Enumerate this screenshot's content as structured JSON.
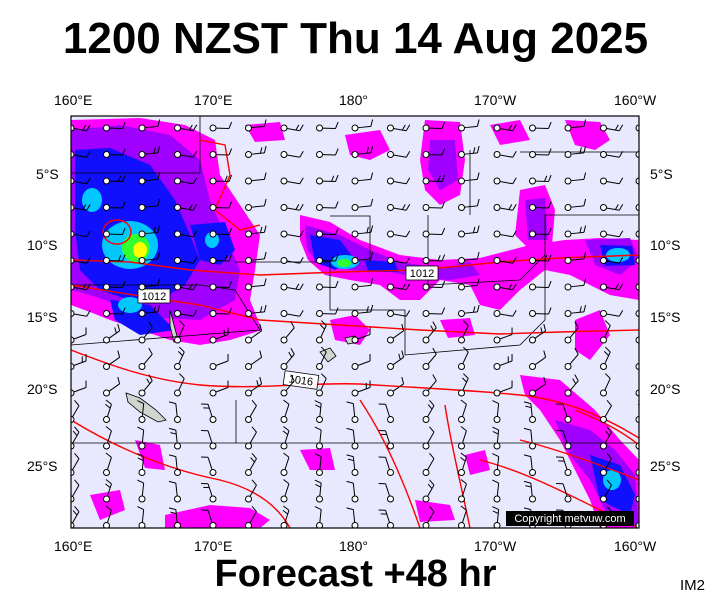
{
  "title": "1200 NZST Thu 14 Aug 2025",
  "subtitle": "Forecast +48 hr",
  "product_code": "IM2",
  "copyright": "Copyright metvuw.com",
  "axes": {
    "lon_labels": [
      "160°E",
      "170°E",
      "180°",
      "170°W",
      "160°W"
    ],
    "lat_labels": [
      "5°S",
      "10°S",
      "15°S",
      "20°S",
      "25°S"
    ]
  },
  "isobars": [
    {
      "label": "1012",
      "value": 1012
    },
    {
      "label": "1012",
      "value": 1012
    },
    {
      "label": "1016",
      "value": 1016
    }
  ],
  "colors": {
    "ocean": "#e8e8ff",
    "rain_magenta": "#ff00ff",
    "rain_purple": "#a000ff",
    "rain_blue": "#1010ff",
    "rain_cyan": "#00c8ff",
    "rain_green": "#30ff30",
    "rain_yellow": "#ffff00",
    "isobar": "#ff0000",
    "border": "#000000"
  }
}
